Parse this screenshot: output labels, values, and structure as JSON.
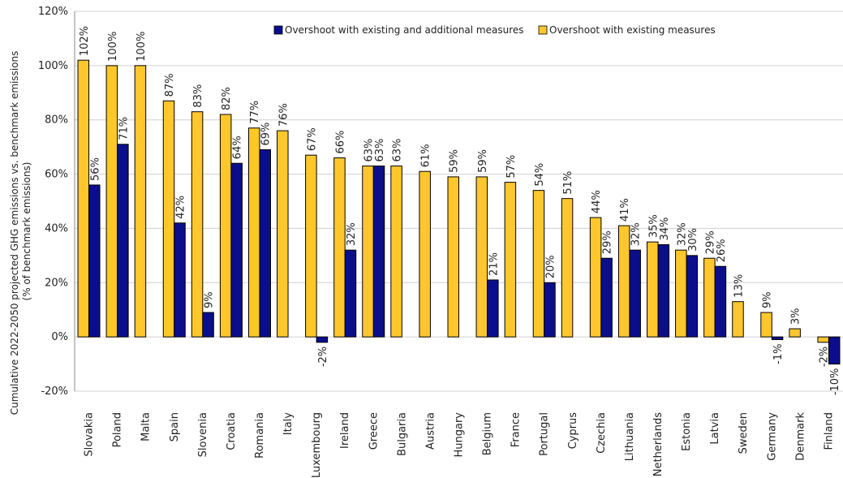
{
  "chart_data": {
    "type": "bar",
    "ylabel_line1": "Cumulative 2022-2050 projected GHG emissions vs. benchmark emissions",
    "ylabel_line2": "(% of benchmark emissions)",
    "ylim": [
      -20,
      120
    ],
    "yticks": [
      -20,
      0,
      20,
      40,
      60,
      80,
      100,
      120
    ],
    "ytick_labels": [
      "-20%",
      "0%",
      "20%",
      "40%",
      "60%",
      "80%",
      "100%",
      "120%"
    ],
    "grid": true,
    "legend_position": "top-center",
    "categories": [
      "Slovakia",
      "Poland",
      "Malta",
      "Spain",
      "Slovenia",
      "Croatia",
      "Romania",
      "Italy",
      "Luxembourg",
      "Ireland",
      "Greece",
      "Bulgaria",
      "Austria",
      "Hungary",
      "Belgium",
      "France",
      "Portugal",
      "Cyprus",
      "Czechia",
      "Lithuania",
      "Netherlands",
      "Estonia",
      "Latvia",
      "Sweden",
      "Germany",
      "Denmark",
      "Finland"
    ],
    "series": [
      {
        "name": "Overshoot with existing measures",
        "color": "#FFC72C",
        "values": [
          102,
          100,
          100,
          87,
          83,
          82,
          77,
          76,
          67,
          66,
          63,
          63,
          61,
          59,
          59,
          57,
          54,
          51,
          44,
          41,
          35,
          32,
          29,
          13,
          9,
          3,
          -2
        ],
        "labels": [
          "102%",
          "100%",
          "100%",
          "87%",
          "83%",
          "82%",
          "77%",
          "76%",
          "67%",
          "66%",
          "63%",
          "63%",
          "61%",
          "59%",
          "59%",
          "57%",
          "54%",
          "51%",
          "44%",
          "41%",
          "35%",
          "32%",
          "29%",
          "13%",
          "9%",
          "3%",
          "-2%"
        ]
      },
      {
        "name": "Overshoot with existing and additional measures",
        "color": "#0B0E8C",
        "values": [
          56,
          71,
          null,
          42,
          9,
          64,
          69,
          null,
          -2,
          32,
          63,
          null,
          null,
          null,
          21,
          null,
          20,
          null,
          29,
          32,
          34,
          30,
          26,
          null,
          -1,
          null,
          -10
        ],
        "labels": [
          "56%",
          "71%",
          null,
          "42%",
          "9%",
          "64%",
          "69%",
          null,
          "-2%",
          "32%",
          "63%",
          null,
          null,
          null,
          "21%",
          null,
          "20%",
          null,
          "29%",
          "32%",
          "34%",
          "30%",
          "26%",
          null,
          "-1%",
          null,
          "-10%"
        ]
      }
    ],
    "legend_order": [
      1,
      0
    ]
  }
}
